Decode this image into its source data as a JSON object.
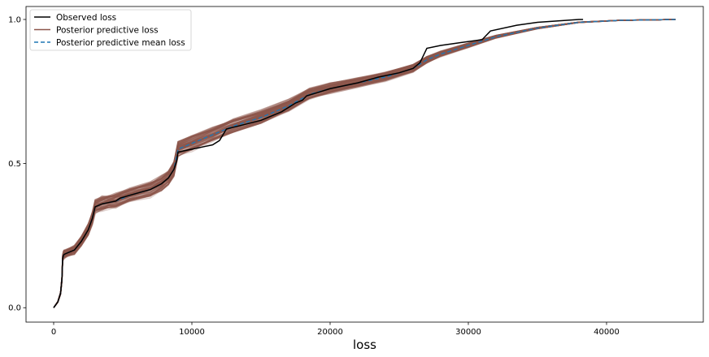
{
  "chart_data": {
    "type": "line",
    "title": "",
    "xlabel": "loss",
    "ylabel": "",
    "xlim": [
      -2000,
      47000
    ],
    "ylim": [
      -0.05,
      1.045
    ],
    "x_ticks": [
      0,
      10000,
      20000,
      30000,
      40000
    ],
    "x_tick_labels": [
      "0",
      "10000",
      "20000",
      "30000",
      "40000"
    ],
    "y_ticks": [
      0.0,
      0.5,
      1.0
    ],
    "y_tick_labels": [
      "0.0",
      "0.5",
      "1.0"
    ],
    "grid": false,
    "legend_position": "top-left",
    "colors": {
      "observed": "#000000",
      "posterior": "#8c564b",
      "mean": "#1f77b4"
    },
    "series": [
      {
        "name": "Observed loss",
        "style": "solid",
        "x": [
          0,
          300,
          500,
          600,
          650,
          700,
          750,
          1000,
          1500,
          2000,
          2500,
          2800,
          3000,
          3500,
          4000,
          4500,
          4800,
          5500,
          7000,
          7800,
          8300,
          8700,
          8900,
          9000,
          10000,
          11000,
          11500,
          12000,
          12500,
          15000,
          16500,
          17500,
          18000,
          18300,
          19000,
          20000,
          22000,
          23500,
          25000,
          26000,
          26500,
          27000,
          28000,
          29500,
          31000,
          31600,
          33500,
          35000,
          36500,
          38000,
          38300
        ],
        "y": [
          0.0,
          0.02,
          0.05,
          0.1,
          0.17,
          0.18,
          0.185,
          0.19,
          0.2,
          0.23,
          0.27,
          0.31,
          0.35,
          0.36,
          0.365,
          0.37,
          0.38,
          0.39,
          0.41,
          0.43,
          0.45,
          0.48,
          0.51,
          0.54,
          0.55,
          0.56,
          0.565,
          0.58,
          0.62,
          0.65,
          0.68,
          0.71,
          0.72,
          0.735,
          0.745,
          0.76,
          0.78,
          0.8,
          0.815,
          0.83,
          0.85,
          0.9,
          0.91,
          0.92,
          0.93,
          0.96,
          0.98,
          0.99,
          0.995,
          1.0,
          1.0
        ]
      },
      {
        "name": "Posterior predictive loss",
        "style": "solid",
        "x": [
          0,
          300,
          500,
          600,
          650,
          700,
          750,
          1000,
          1500,
          2000,
          2500,
          2800,
          3000,
          3500,
          4000,
          4500,
          5500,
          7000,
          7800,
          8300,
          8700,
          9000,
          10000,
          11500,
          13000,
          15000,
          17000,
          18500,
          20000,
          22000,
          24000,
          26000,
          27000,
          28000,
          30000,
          32000,
          35000,
          38000,
          41000,
          45000
        ],
        "y": [
          0.0,
          0.02,
          0.05,
          0.1,
          0.17,
          0.18,
          0.185,
          0.19,
          0.2,
          0.23,
          0.27,
          0.31,
          0.35,
          0.36,
          0.365,
          0.37,
          0.39,
          0.41,
          0.43,
          0.45,
          0.48,
          0.55,
          0.57,
          0.6,
          0.63,
          0.66,
          0.7,
          0.74,
          0.76,
          0.78,
          0.8,
          0.83,
          0.86,
          0.88,
          0.91,
          0.94,
          0.97,
          0.99,
          0.997,
          1.0
        ]
      },
      {
        "name": "Posterior predictive mean loss",
        "style": "dashed",
        "x": [
          0,
          300,
          500,
          600,
          650,
          700,
          750,
          1000,
          1500,
          2000,
          2500,
          2800,
          3000,
          3500,
          4000,
          4500,
          5500,
          7000,
          7800,
          8300,
          8700,
          9000,
          10000,
          11500,
          13000,
          15000,
          17000,
          18500,
          20000,
          22000,
          24000,
          26000,
          27000,
          28000,
          30000,
          32000,
          35000,
          38000,
          41000,
          45000
        ],
        "y": [
          0.0,
          0.02,
          0.05,
          0.1,
          0.17,
          0.18,
          0.185,
          0.19,
          0.2,
          0.23,
          0.27,
          0.31,
          0.35,
          0.36,
          0.365,
          0.37,
          0.39,
          0.41,
          0.43,
          0.45,
          0.48,
          0.55,
          0.57,
          0.6,
          0.63,
          0.66,
          0.7,
          0.74,
          0.76,
          0.78,
          0.8,
          0.83,
          0.86,
          0.88,
          0.91,
          0.94,
          0.97,
          0.99,
          0.997,
          1.0
        ]
      }
    ]
  }
}
